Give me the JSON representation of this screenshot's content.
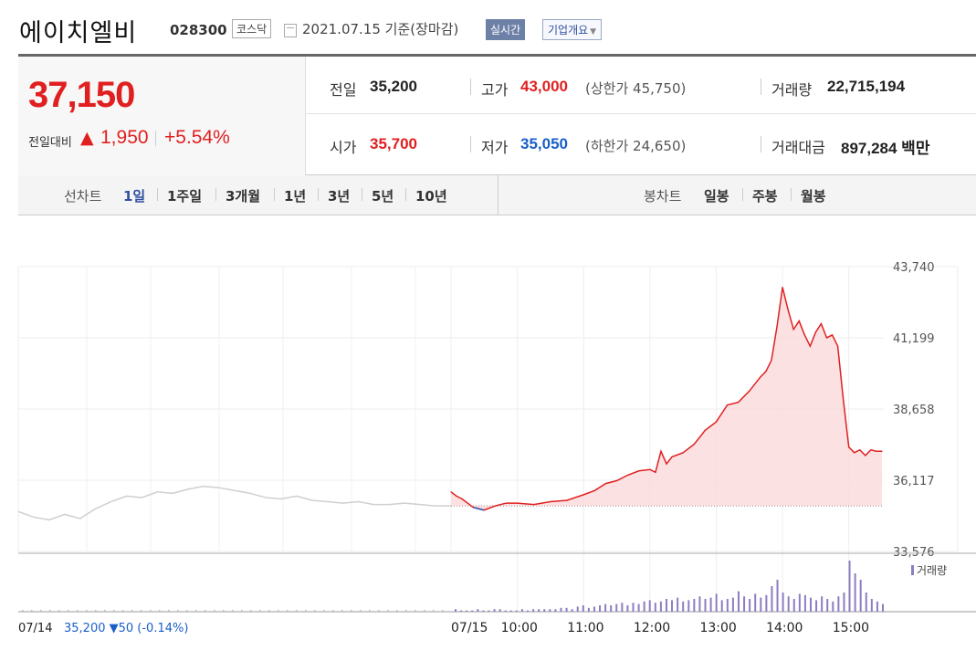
{
  "header": {
    "name": "에이치엘비",
    "code": "028300",
    "market": "코스닥",
    "date": "2021.07.15 기준(장마감)",
    "realtime_btn": "실시간",
    "company_btn": "기업개요"
  },
  "price": {
    "current": "37,150",
    "change_label": "전일대비",
    "change_value": "1,950",
    "change_pct": "+5.54%",
    "prev_label": "전일",
    "prev": "35,200",
    "open_label": "시가",
    "open": "35,700",
    "high_label": "고가",
    "high": "43,000",
    "upper_limit": "(상한가 45,750)",
    "low_label": "저가",
    "low": "35,050",
    "lower_limit": "(하한가 24,650)",
    "volume_label": "거래량",
    "volume": "22,715,194",
    "amount_label": "거래대금",
    "amount": "897,284 백만"
  },
  "periods": {
    "line_label": "선차트",
    "line_items": [
      "1일",
      "1주일",
      "3개월",
      "1년",
      "3년",
      "5년",
      "10년"
    ],
    "active": "1일",
    "candle_label": "봉차트",
    "candle_items": [
      "일봉",
      "주봉",
      "월봉"
    ]
  },
  "colors": {
    "up": "#e02020",
    "down": "#1a5fc8",
    "accent": "#2f4fa0"
  },
  "chart_data": {
    "type": "line",
    "y_ticks": [
      "43,740",
      "41,199",
      "38,658",
      "36,117",
      "33,576"
    ],
    "ylim": [
      33576,
      43740
    ],
    "x_ticks": [
      "07/15",
      "10:00",
      "11:00",
      "12:00",
      "13:00",
      "14:00",
      "15:00"
    ],
    "prev_day_label": "07/14",
    "prev_day_close": "35,200",
    "prev_day_change": "▼50",
    "prev_day_pct": "(-0.14%)",
    "volume_label": "거래량",
    "baseline": 35200,
    "series": [
      {
        "x": [
          "09:00",
          "09:05",
          "09:10",
          "09:15",
          "09:20",
          "09:25",
          "09:30",
          "09:40",
          "09:50",
          "10:00",
          "10:15",
          "10:30",
          "10:45",
          "11:00",
          "11:10",
          "11:20",
          "11:30",
          "11:40",
          "11:50",
          "12:00",
          "12:05",
          "12:10",
          "12:15",
          "12:20",
          "12:30",
          "12:40",
          "12:50",
          "13:00",
          "13:10",
          "13:20",
          "13:30",
          "13:40",
          "13:45",
          "13:50",
          "13:55",
          "14:00",
          "14:05",
          "14:10",
          "14:15",
          "14:20",
          "14:25",
          "14:30",
          "14:35",
          "14:40",
          "14:45",
          "14:50",
          "14:55",
          "15:00",
          "15:05",
          "15:10",
          "15:15",
          "15:20",
          "15:25",
          "15:30"
        ],
        "values": [
          35700,
          35550,
          35450,
          35300,
          35150,
          35100,
          35050,
          35200,
          35300,
          35300,
          35250,
          35350,
          35400,
          35600,
          35750,
          36000,
          36100,
          36300,
          36450,
          36500,
          36400,
          37150,
          36700,
          36950,
          37100,
          37400,
          37900,
          38200,
          38800,
          38900,
          39300,
          39800,
          40000,
          40400,
          41600,
          43000,
          42200,
          41500,
          41800,
          41300,
          40900,
          41400,
          41700,
          41200,
          41300,
          40900,
          39000,
          37300,
          37100,
          37200,
          37000,
          37200,
          37150,
          37150
        ]
      }
    ],
    "prev_series": {
      "values": [
        35000,
        34800,
        34700,
        34900,
        34750,
        35100,
        35350,
        35550,
        35500,
        35700,
        35650,
        35800,
        35900,
        35850,
        35750,
        35650,
        35500,
        35450,
        35550,
        35400,
        35350,
        35300,
        35350,
        35250,
        35250,
        35300,
        35250,
        35200,
        35200
      ]
    },
    "volume_values": [
      2,
      1,
      1,
      1,
      2,
      1,
      1,
      2,
      2,
      1,
      1,
      1,
      2,
      1,
      2,
      2,
      2,
      2,
      2,
      3,
      3,
      2,
      4,
      5,
      3,
      4,
      5,
      6,
      5,
      6,
      7,
      5,
      7,
      6,
      8,
      9,
      7,
      8,
      10,
      9,
      11,
      8,
      9,
      10,
      12,
      10,
      11,
      14,
      9,
      10,
      11,
      16,
      12,
      10,
      14,
      11,
      13,
      20,
      25,
      15,
      12,
      10,
      14,
      13,
      11,
      9,
      12,
      10,
      8,
      12,
      15,
      40,
      30,
      25,
      15,
      10,
      8,
      6
    ]
  }
}
